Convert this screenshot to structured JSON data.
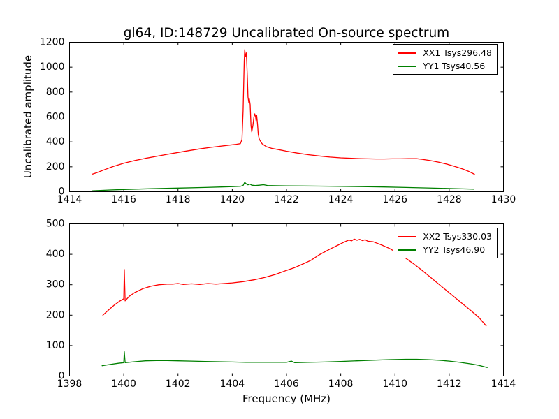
{
  "figure": {
    "title": "gl64, ID:148729 Uncalibrated On-source spectrum",
    "xlabel": "Frequency (MHz)",
    "ylabel": "Uncalibrated amplitude",
    "background": "#ffffff",
    "text_color": "#000000",
    "line_colors": {
      "xx": "#ff0000",
      "yy": "#008000"
    }
  },
  "chart_data": [
    {
      "type": "line",
      "subplot": "top",
      "xlim": [
        1414,
        1430
      ],
      "ylim": [
        0,
        1200
      ],
      "xticks": [
        1414,
        1416,
        1418,
        1420,
        1422,
        1424,
        1426,
        1428,
        1430
      ],
      "yticks": [
        0,
        200,
        400,
        600,
        800,
        1000,
        1200
      ],
      "grid": false,
      "legend": {
        "position": "upper right",
        "entries": [
          {
            "label": "XX1 Tsys296.48",
            "color": "#ff0000"
          },
          {
            "label": "YY1 Tsys40.56",
            "color": "#008000"
          }
        ]
      },
      "series": [
        {
          "name": "XX1",
          "color": "#ff0000",
          "points": [
            [
              1414.85,
              142
            ],
            [
              1415.0,
              152
            ],
            [
              1415.3,
              178
            ],
            [
              1415.6,
              202
            ],
            [
              1416.0,
              228
            ],
            [
              1416.4,
              250
            ],
            [
              1416.8,
              268
            ],
            [
              1417.2,
              284
            ],
            [
              1417.6,
              300
            ],
            [
              1418.0,
              315
            ],
            [
              1418.4,
              330
            ],
            [
              1418.8,
              344
            ],
            [
              1419.2,
              356
            ],
            [
              1419.5,
              364
            ],
            [
              1419.8,
              372
            ],
            [
              1420.0,
              377
            ],
            [
              1420.15,
              381
            ],
            [
              1420.3,
              386
            ],
            [
              1420.36,
              420
            ],
            [
              1420.4,
              650
            ],
            [
              1420.44,
              1050
            ],
            [
              1420.46,
              1140
            ],
            [
              1420.49,
              1085
            ],
            [
              1420.52,
              1115
            ],
            [
              1420.56,
              900
            ],
            [
              1420.58,
              760
            ],
            [
              1420.61,
              715
            ],
            [
              1420.63,
              745
            ],
            [
              1420.66,
              700
            ],
            [
              1420.69,
              530
            ],
            [
              1420.72,
              480
            ],
            [
              1420.76,
              530
            ],
            [
              1420.8,
              600
            ],
            [
              1420.83,
              625
            ],
            [
              1420.86,
              600
            ],
            [
              1420.88,
              570
            ],
            [
              1420.9,
              615
            ],
            [
              1420.93,
              545
            ],
            [
              1420.96,
              460
            ],
            [
              1421.0,
              420
            ],
            [
              1421.1,
              385
            ],
            [
              1421.25,
              362
            ],
            [
              1421.45,
              348
            ],
            [
              1421.7,
              338
            ],
            [
              1422.0,
              325
            ],
            [
              1422.4,
              310
            ],
            [
              1422.8,
              297
            ],
            [
              1423.2,
              287
            ],
            [
              1423.6,
              278
            ],
            [
              1424.0,
              272
            ],
            [
              1424.4,
              268
            ],
            [
              1424.7,
              266
            ],
            [
              1425.0,
              264
            ],
            [
              1425.3,
              263
            ],
            [
              1425.6,
              263
            ],
            [
              1425.9,
              264
            ],
            [
              1426.2,
              264
            ],
            [
              1426.5,
              266
            ],
            [
              1426.8,
              265
            ],
            [
              1427.0,
              260
            ],
            [
              1427.3,
              250
            ],
            [
              1427.6,
              238
            ],
            [
              1427.9,
              222
            ],
            [
              1428.2,
              203
            ],
            [
              1428.5,
              182
            ],
            [
              1428.7,
              165
            ],
            [
              1428.93,
              140
            ]
          ]
        },
        {
          "name": "YY1",
          "color": "#008000",
          "points": [
            [
              1414.85,
              8
            ],
            [
              1415.5,
              14
            ],
            [
              1416.0,
              18
            ],
            [
              1417.0,
              24
            ],
            [
              1418.0,
              29
            ],
            [
              1419.0,
              34
            ],
            [
              1419.6,
              38
            ],
            [
              1420.0,
              41
            ],
            [
              1420.3,
              44
            ],
            [
              1420.4,
              50
            ],
            [
              1420.46,
              75
            ],
            [
              1420.52,
              62
            ],
            [
              1420.58,
              55
            ],
            [
              1420.65,
              61
            ],
            [
              1420.72,
              52
            ],
            [
              1420.85,
              50
            ],
            [
              1421.0,
              52
            ],
            [
              1421.15,
              56
            ],
            [
              1421.3,
              50
            ],
            [
              1421.6,
              48
            ],
            [
              1422.0,
              47
            ],
            [
              1422.6,
              46
            ],
            [
              1423.2,
              45
            ],
            [
              1424.0,
              43
            ],
            [
              1424.8,
              41
            ],
            [
              1425.6,
              38
            ],
            [
              1426.4,
              34
            ],
            [
              1427.2,
              30
            ],
            [
              1428.0,
              26
            ],
            [
              1428.5,
              23
            ],
            [
              1428.9,
              21
            ]
          ]
        }
      ]
    },
    {
      "type": "line",
      "subplot": "bottom",
      "xlim": [
        1398,
        1414
      ],
      "ylim": [
        0,
        500
      ],
      "xticks": [
        1398,
        1400,
        1402,
        1404,
        1406,
        1408,
        1410,
        1412,
        1414
      ],
      "yticks": [
        0,
        100,
        200,
        300,
        400,
        500
      ],
      "grid": false,
      "legend": {
        "position": "upper right",
        "entries": [
          {
            "label": "XX2 Tsys330.03",
            "color": "#ff0000"
          },
          {
            "label": "YY2 Tsys46.90",
            "color": "#008000"
          }
        ]
      },
      "series": [
        {
          "name": "XX2",
          "color": "#ff0000",
          "points": [
            [
              1399.23,
              200
            ],
            [
              1399.45,
              218
            ],
            [
              1399.65,
              233
            ],
            [
              1399.85,
              246
            ],
            [
              1400.0,
              254
            ],
            [
              1400.02,
              350
            ],
            [
              1400.05,
              247
            ],
            [
              1400.2,
              262
            ],
            [
              1400.4,
              274
            ],
            [
              1400.7,
              287
            ],
            [
              1401.0,
              295
            ],
            [
              1401.3,
              300
            ],
            [
              1401.6,
              302
            ],
            [
              1401.8,
              302
            ],
            [
              1402.0,
              304
            ],
            [
              1402.2,
              301
            ],
            [
              1402.5,
              303
            ],
            [
              1402.8,
              301
            ],
            [
              1403.1,
              304
            ],
            [
              1403.4,
              302
            ],
            [
              1403.7,
              304
            ],
            [
              1404.0,
              306
            ],
            [
              1404.4,
              310
            ],
            [
              1404.8,
              316
            ],
            [
              1405.2,
              324
            ],
            [
              1405.6,
              334
            ],
            [
              1406.0,
              347
            ],
            [
              1406.3,
              356
            ],
            [
              1406.6,
              368
            ],
            [
              1406.9,
              380
            ],
            [
              1407.2,
              398
            ],
            [
              1407.6,
              417
            ],
            [
              1407.9,
              430
            ],
            [
              1408.1,
              439
            ],
            [
              1408.2,
              443
            ],
            [
              1408.3,
              447
            ],
            [
              1408.4,
              444
            ],
            [
              1408.5,
              450
            ],
            [
              1408.6,
              446
            ],
            [
              1408.7,
              449
            ],
            [
              1408.8,
              445
            ],
            [
              1408.9,
              448
            ],
            [
              1409.0,
              443
            ],
            [
              1409.2,
              441
            ],
            [
              1409.5,
              431
            ],
            [
              1409.8,
              419
            ],
            [
              1410.1,
              404
            ],
            [
              1410.4,
              387
            ],
            [
              1410.7,
              368
            ],
            [
              1411.0,
              347
            ],
            [
              1411.3,
              325
            ],
            [
              1411.6,
              303
            ],
            [
              1411.9,
              281
            ],
            [
              1412.2,
              259
            ],
            [
              1412.5,
              237
            ],
            [
              1412.8,
              215
            ],
            [
              1413.1,
              192
            ],
            [
              1413.36,
              165
            ]
          ]
        },
        {
          "name": "YY2",
          "color": "#008000",
          "points": [
            [
              1399.2,
              34
            ],
            [
              1399.5,
              38
            ],
            [
              1399.8,
              42
            ],
            [
              1400.0,
              44
            ],
            [
              1400.02,
              80
            ],
            [
              1400.05,
              44
            ],
            [
              1400.4,
              47
            ],
            [
              1400.8,
              50
            ],
            [
              1401.2,
              51
            ],
            [
              1401.6,
              51
            ],
            [
              1402.0,
              50
            ],
            [
              1402.5,
              49
            ],
            [
              1403.0,
              48
            ],
            [
              1403.5,
              47
            ],
            [
              1404.0,
              46
            ],
            [
              1404.5,
              45
            ],
            [
              1405.0,
              45
            ],
            [
              1405.5,
              45
            ],
            [
              1406.0,
              45
            ],
            [
              1406.18,
              49
            ],
            [
              1406.3,
              44
            ],
            [
              1406.8,
              45
            ],
            [
              1407.4,
              46
            ],
            [
              1408.0,
              48
            ],
            [
              1408.6,
              50
            ],
            [
              1409.2,
              52
            ],
            [
              1409.8,
              54
            ],
            [
              1410.4,
              55
            ],
            [
              1410.8,
              55
            ],
            [
              1411.2,
              54
            ],
            [
              1411.6,
              52
            ],
            [
              1412.0,
              49
            ],
            [
              1412.4,
              45
            ],
            [
              1412.8,
              40
            ],
            [
              1413.1,
              35
            ],
            [
              1413.4,
              28
            ]
          ]
        }
      ]
    }
  ]
}
